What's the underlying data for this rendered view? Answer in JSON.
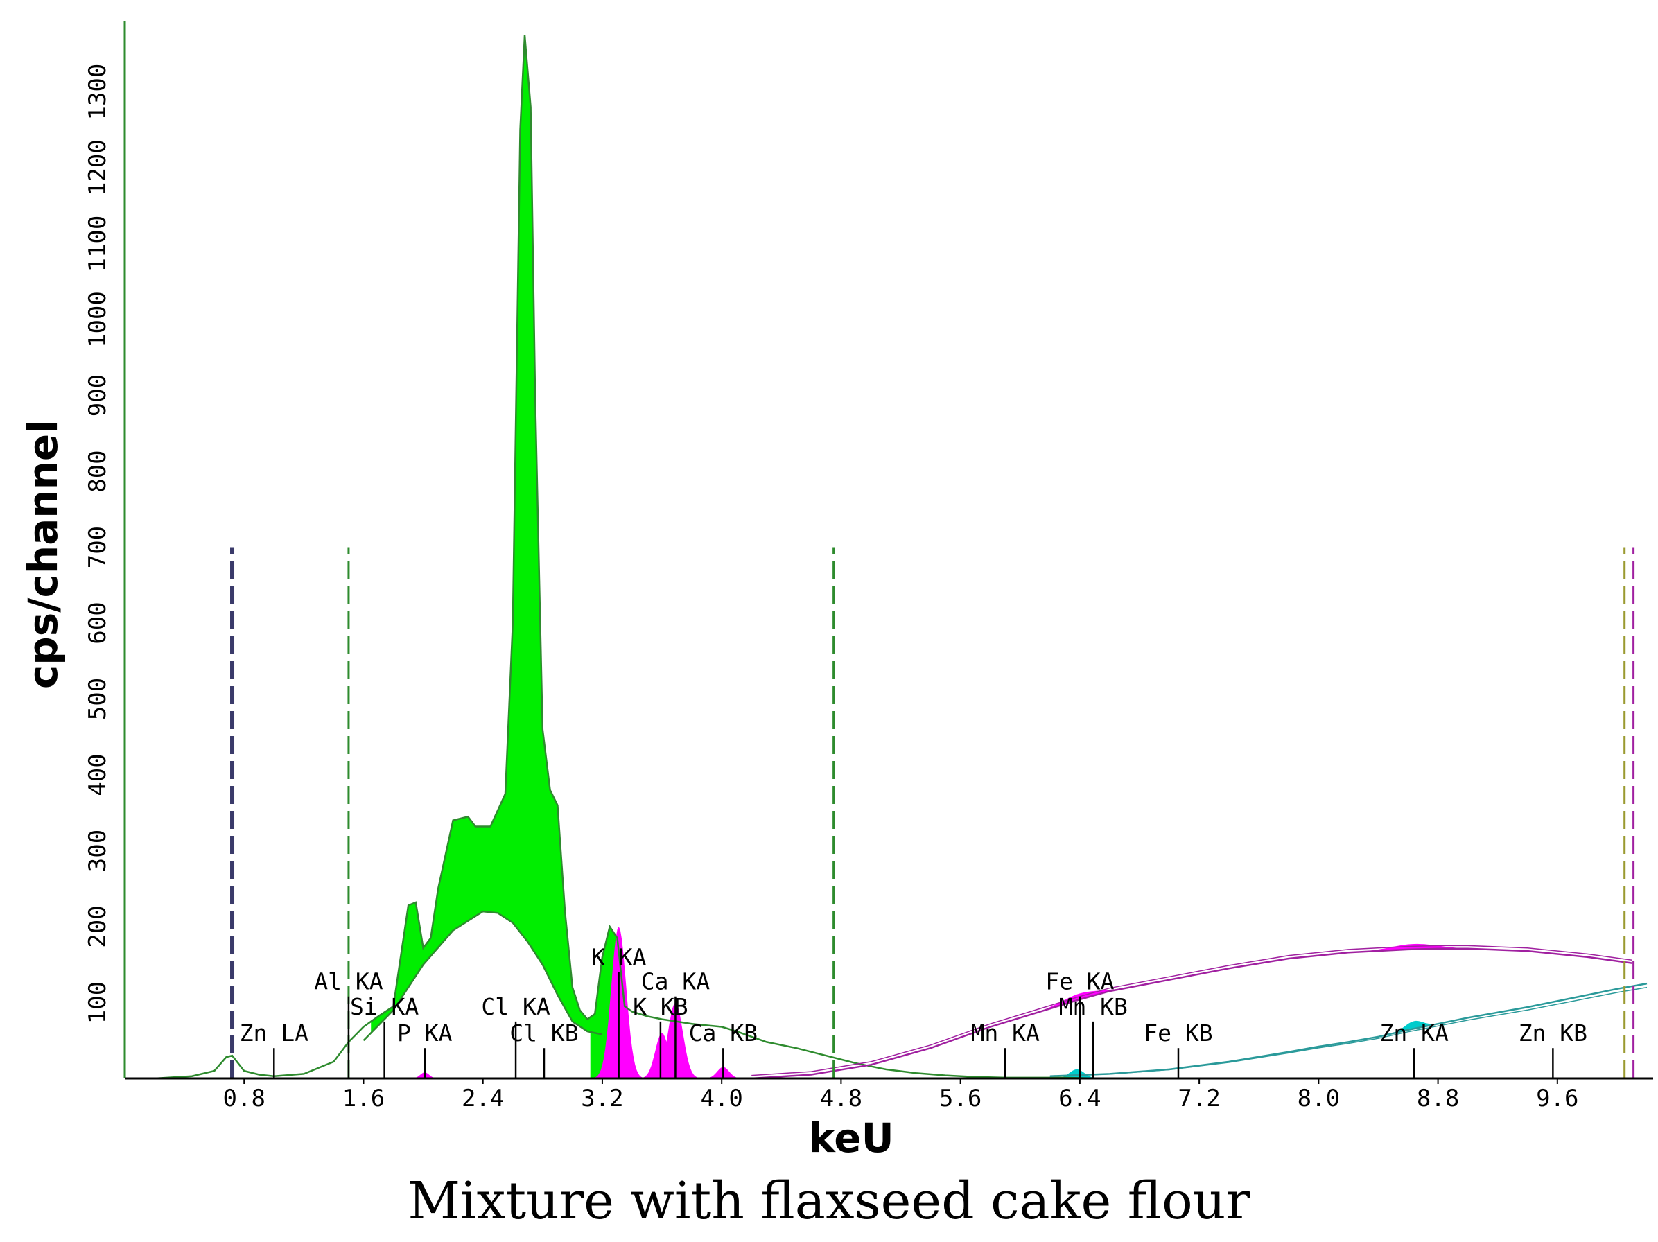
{
  "chart_data": {
    "type": "line",
    "caption": "Mixture with flaxseed cake flour",
    "xlabel": "keU",
    "ylabel": "cps/channel",
    "xlim": [
      0,
      10.2
    ],
    "ylim": [
      0,
      1380
    ],
    "x_ticks": [
      "0.8",
      "1.6",
      "2.4",
      "3.2",
      "4.0",
      "4.8",
      "5.6",
      "6.4",
      "7.2",
      "8.0",
      "8.8",
      "9.6"
    ],
    "y_ticks": [
      "100",
      "200",
      "300",
      "400",
      "500",
      "600",
      "700",
      "800",
      "900",
      "1000",
      "1100",
      "1200",
      "1300"
    ],
    "colors": {
      "spectrum": "#2e8b2e",
      "fit_fill": "#00ee00",
      "high_fill": "#ff00ff",
      "high_line": "#a020a0",
      "zn_fill": "#00cccc",
      "zn_line": "#2a9a9a",
      "marker": "#000000"
    },
    "series": [
      {
        "role": "low-energy-spectrum",
        "x": [
          0.2,
          0.45,
          0.6,
          0.68,
          0.72,
          0.8,
          0.9,
          1.0,
          1.2,
          1.4,
          1.5,
          1.6,
          1.7,
          1.8,
          1.9,
          1.95,
          2.0,
          2.05,
          2.1,
          2.2,
          2.3,
          2.35,
          2.45,
          2.55,
          2.6,
          2.65,
          2.68,
          2.72,
          2.75,
          2.8,
          2.85,
          2.9,
          2.95,
          3.0,
          3.05,
          3.1,
          3.15,
          3.2,
          3.25,
          3.3,
          3.35,
          3.4,
          3.5,
          3.6,
          3.7,
          3.8,
          3.9,
          4.0,
          4.1,
          4.2,
          4.3,
          4.5,
          4.7,
          4.9,
          5.1,
          5.3,
          5.5,
          5.7,
          5.9,
          6.1,
          6.3,
          6.5,
          6.6
        ],
        "y": [
          0,
          3,
          10,
          28,
          30,
          10,
          5,
          3,
          6,
          22,
          48,
          68,
          82,
          95,
          228,
          232,
          172,
          185,
          250,
          340,
          345,
          332,
          332,
          375,
          600,
          1250,
          1375,
          1280,
          900,
          460,
          380,
          360,
          220,
          120,
          90,
          78,
          85,
          160,
          200,
          185,
          95,
          88,
          82,
          78,
          75,
          72,
          70,
          68,
          62,
          55,
          48,
          40,
          30,
          20,
          12,
          7,
          4,
          2,
          1,
          1,
          1,
          0,
          0
        ]
      },
      {
        "role": "background-curve",
        "x": [
          1.6,
          1.8,
          2.0,
          2.2,
          2.4,
          2.5,
          2.6,
          2.7,
          2.8,
          2.9,
          3.0,
          3.1,
          3.2
        ],
        "y": [
          50,
          90,
          150,
          195,
          220,
          218,
          205,
          180,
          150,
          110,
          75,
          62,
          58
        ]
      },
      {
        "role": "high-energy-curve",
        "x": [
          4.2,
          4.6,
          5.0,
          5.4,
          5.8,
          6.2,
          6.4,
          6.6,
          7.0,
          7.4,
          7.8,
          8.2,
          8.6,
          8.8,
          9.0,
          9.4,
          9.8,
          10.1
        ],
        "y": [
          0,
          5,
          18,
          40,
          68,
          92,
          104,
          115,
          130,
          145,
          158,
          166,
          170,
          171,
          171,
          168,
          160,
          152
        ]
      },
      {
        "role": "zn-region-curve",
        "x": [
          6.2,
          6.6,
          7.0,
          7.4,
          7.8,
          8.0,
          8.2,
          8.4,
          8.6,
          8.8,
          9.0,
          9.4,
          9.8,
          10.0,
          10.2
        ],
        "y": [
          3,
          6,
          12,
          22,
          35,
          42,
          48,
          55,
          64,
          72,
          80,
          94,
          110,
          118,
          125
        ]
      }
    ],
    "peak_labels": [
      {
        "text": "Zn LA",
        "x": 1.0,
        "y": 40
      },
      {
        "text": "Al KA",
        "x": 1.5,
        "y": 108
      },
      {
        "text": "Si KA",
        "x": 1.74,
        "y": 75
      },
      {
        "text": "P KA",
        "x": 2.01,
        "y": 40
      },
      {
        "text": "Cl KA",
        "x": 2.62,
        "y": 75
      },
      {
        "text": "Cl KB",
        "x": 2.81,
        "y": 40
      },
      {
        "text": "K KA",
        "x": 3.31,
        "y": 140
      },
      {
        "text": "K KB",
        "x": 3.59,
        "y": 75
      },
      {
        "text": "Ca KA",
        "x": 3.69,
        "y": 108
      },
      {
        "text": "Ca KB",
        "x": 4.01,
        "y": 40
      },
      {
        "text": "Fe KA",
        "x": 6.4,
        "y": 108
      },
      {
        "text": "Mn KB",
        "x": 6.49,
        "y": 75
      },
      {
        "text": "Mn KA",
        "x": 5.9,
        "y": 40
      },
      {
        "text": "Fe KB",
        "x": 7.06,
        "y": 40
      },
      {
        "text": "Zn KA",
        "x": 8.64,
        "y": 40
      },
      {
        "text": "Zn KB",
        "x": 9.57,
        "y": 40
      }
    ],
    "region_markers": [
      {
        "x": 0.72,
        "ymax": 700
      },
      {
        "x": 1.5,
        "ymax": 700
      },
      {
        "x": 4.75,
        "ymax": 700
      },
      {
        "x": 10.05,
        "ymax": 700
      },
      {
        "x": 10.11,
        "ymax": 700
      }
    ]
  }
}
